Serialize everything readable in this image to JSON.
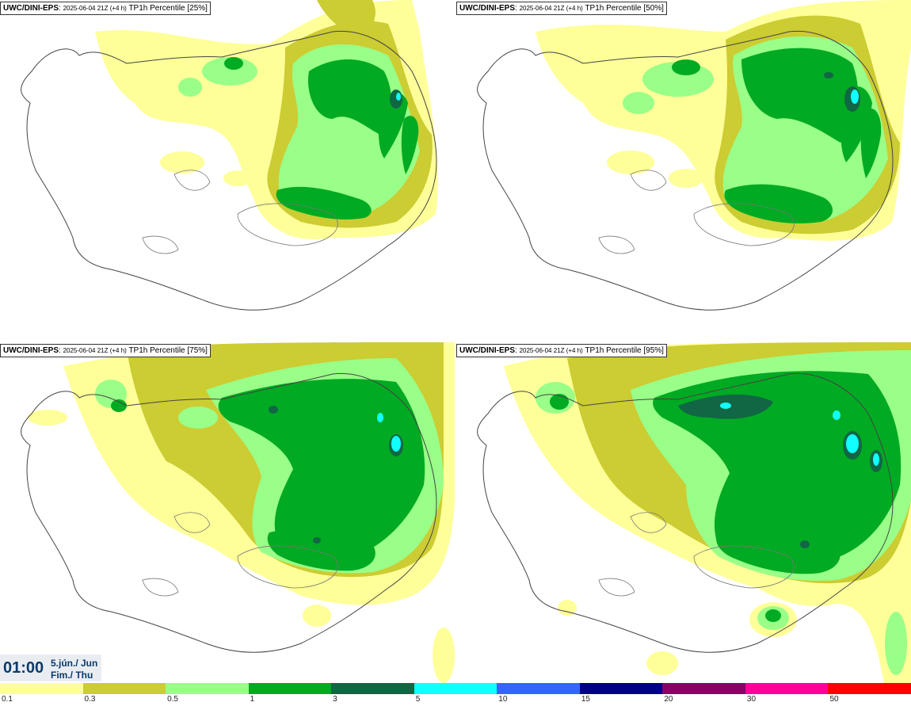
{
  "panels": [
    {
      "model": "UWC/DINI-EPS",
      "run": "2025-06-04 21Z (+4 h)",
      "field": "TP1h Percentile [25%]"
    },
    {
      "model": "UWC/DINI-EPS",
      "run": "2025-06-04 21Z (+4 h)",
      "field": "TP1h Percentile [50%]"
    },
    {
      "model": "UWC/DINI-EPS",
      "run": "2025-06-04 21Z (+4 h)",
      "field": "TP1h Percentile [75%]"
    },
    {
      "model": "UWC/DINI-EPS",
      "run": "2025-06-04 21Z (+4 h)",
      "field": "TP1h Percentile [95%]"
    }
  ],
  "valid_time": {
    "time": "01:00",
    "date_line1": "5.jún./ Jun",
    "date_line2": "Fim./ Thu"
  },
  "legend": {
    "colors": [
      "#ffff99",
      "#cccc33",
      "#99ff88",
      "#00aa22",
      "#116644",
      "#11ffff",
      "#3366ff",
      "#000088",
      "#880066",
      "#ff0099",
      "#ff0000"
    ],
    "labels": [
      "0.1",
      "0.3",
      "0.5",
      "1",
      "3",
      "5",
      "10",
      "15",
      "20",
      "30",
      "50"
    ]
  }
}
